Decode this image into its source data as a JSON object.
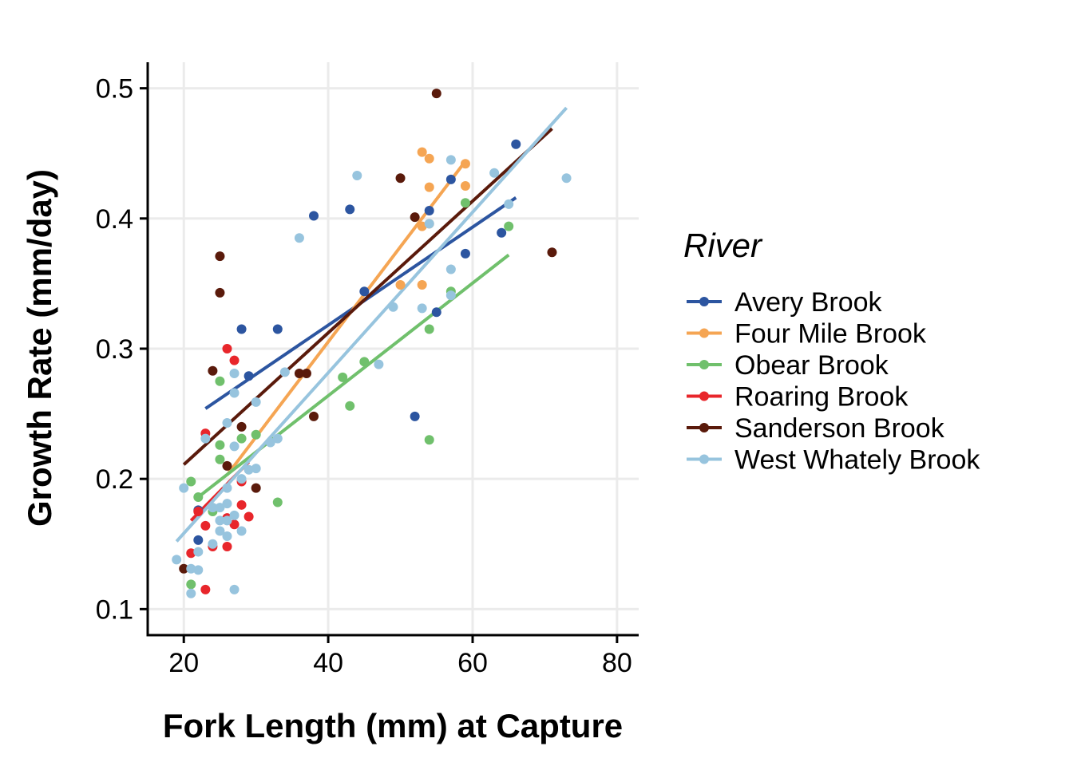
{
  "chart_data": {
    "type": "scatter",
    "xlabel": "Fork Length (mm) at Capture",
    "ylabel": "Growth Rate (mm/day)",
    "xlim": [
      15,
      83
    ],
    "ylim": [
      0.08,
      0.52
    ],
    "x_ticks": [
      20,
      40,
      60,
      80
    ],
    "y_ticks": [
      0.1,
      0.2,
      0.3,
      0.4,
      0.5
    ],
    "x_tick_labels": [
      "20",
      "40",
      "60",
      "80"
    ],
    "y_tick_labels": [
      "0.1",
      "0.2",
      "0.3",
      "0.4",
      "0.5"
    ],
    "grid": true,
    "legend_title": "River",
    "legend_position": "right",
    "series": [
      {
        "name": "Avery Brook",
        "color": "#2c55a0",
        "points": [
          [
            22,
            0.153
          ],
          [
            22,
            0.176
          ],
          [
            28,
            0.315
          ],
          [
            29,
            0.279
          ],
          [
            33,
            0.315
          ],
          [
            38,
            0.402
          ],
          [
            43,
            0.407
          ],
          [
            45,
            0.344
          ],
          [
            52,
            0.248
          ],
          [
            54,
            0.406
          ],
          [
            55,
            0.328
          ],
          [
            57,
            0.43
          ],
          [
            59,
            0.373
          ],
          [
            64,
            0.389
          ],
          [
            66,
            0.457
          ]
        ],
        "fit": [
          [
            23,
            0.254
          ],
          [
            66,
            0.416
          ]
        ]
      },
      {
        "name": "Four Mile Brook",
        "color": "#f5a553",
        "points": [
          [
            50,
            0.349
          ],
          [
            53,
            0.451
          ],
          [
            53,
            0.394
          ],
          [
            53,
            0.349
          ],
          [
            54,
            0.446
          ],
          [
            54,
            0.424
          ],
          [
            54,
            0.396
          ],
          [
            59,
            0.442
          ],
          [
            59,
            0.425
          ]
        ],
        "fit": [
          [
            26,
            0.203
          ],
          [
            59,
            0.444
          ]
        ]
      },
      {
        "name": "Obear Brook",
        "color": "#70c06c",
        "points": [
          [
            21,
            0.119
          ],
          [
            21,
            0.198
          ],
          [
            22,
            0.186
          ],
          [
            24,
            0.175
          ],
          [
            25,
            0.275
          ],
          [
            25,
            0.226
          ],
          [
            25,
            0.215
          ],
          [
            28,
            0.231
          ],
          [
            30,
            0.234
          ],
          [
            33,
            0.182
          ],
          [
            42,
            0.278
          ],
          [
            43,
            0.256
          ],
          [
            45,
            0.29
          ],
          [
            54,
            0.315
          ],
          [
            54,
            0.23
          ],
          [
            57,
            0.344
          ],
          [
            59,
            0.412
          ],
          [
            65,
            0.394
          ]
        ],
        "fit": [
          [
            22,
            0.186
          ],
          [
            65,
            0.372
          ]
        ]
      },
      {
        "name": "Roaring Brook",
        "color": "#e8262b",
        "points": [
          [
            21,
            0.143
          ],
          [
            22,
            0.175
          ],
          [
            23,
            0.235
          ],
          [
            23,
            0.164
          ],
          [
            23,
            0.115
          ],
          [
            24,
            0.148
          ],
          [
            26,
            0.3
          ],
          [
            26,
            0.17
          ],
          [
            26,
            0.148
          ],
          [
            27,
            0.291
          ],
          [
            28,
            0.18
          ],
          [
            28,
            0.198
          ],
          [
            29,
            0.171
          ],
          [
            27,
            0.165
          ]
        ],
        "fit": [
          [
            21,
            0.168
          ],
          [
            29,
            0.213
          ]
        ]
      },
      {
        "name": "Sanderson Brook",
        "color": "#5a1a0b",
        "points": [
          [
            20,
            0.131
          ],
          [
            24,
            0.283
          ],
          [
            25,
            0.371
          ],
          [
            25,
            0.343
          ],
          [
            26,
            0.21
          ],
          [
            28,
            0.24
          ],
          [
            30,
            0.193
          ],
          [
            36,
            0.281
          ],
          [
            37,
            0.281
          ],
          [
            38,
            0.248
          ],
          [
            50,
            0.431
          ],
          [
            52,
            0.401
          ],
          [
            55,
            0.496
          ],
          [
            71,
            0.374
          ]
        ],
        "fit": [
          [
            20,
            0.211
          ],
          [
            71,
            0.469
          ]
        ]
      },
      {
        "name": "West Whately Brook",
        "color": "#97c4de",
        "points": [
          [
            19,
            0.138
          ],
          [
            20,
            0.193
          ],
          [
            21,
            0.131
          ],
          [
            21,
            0.112
          ],
          [
            22,
            0.144
          ],
          [
            22,
            0.13
          ],
          [
            23,
            0.231
          ],
          [
            24,
            0.178
          ],
          [
            24,
            0.15
          ],
          [
            25,
            0.178
          ],
          [
            25,
            0.168
          ],
          [
            25,
            0.16
          ],
          [
            26,
            0.243
          ],
          [
            26,
            0.193
          ],
          [
            26,
            0.181
          ],
          [
            26,
            0.168
          ],
          [
            26,
            0.156
          ],
          [
            27,
            0.281
          ],
          [
            27,
            0.266
          ],
          [
            27,
            0.225
          ],
          [
            27,
            0.172
          ],
          [
            27,
            0.115
          ],
          [
            28,
            0.2
          ],
          [
            28,
            0.16
          ],
          [
            29,
            0.207
          ],
          [
            30,
            0.259
          ],
          [
            30,
            0.208
          ],
          [
            32,
            0.228
          ],
          [
            33,
            0.231
          ],
          [
            34,
            0.282
          ],
          [
            36,
            0.385
          ],
          [
            44,
            0.433
          ],
          [
            47,
            0.288
          ],
          [
            49,
            0.332
          ],
          [
            53,
            0.331
          ],
          [
            54,
            0.396
          ],
          [
            57,
            0.445
          ],
          [
            57,
            0.361
          ],
          [
            57,
            0.341
          ],
          [
            63,
            0.435
          ],
          [
            65,
            0.411
          ],
          [
            73,
            0.431
          ]
        ],
        "fit": [
          [
            19,
            0.152
          ],
          [
            73,
            0.485
          ]
        ]
      }
    ]
  }
}
